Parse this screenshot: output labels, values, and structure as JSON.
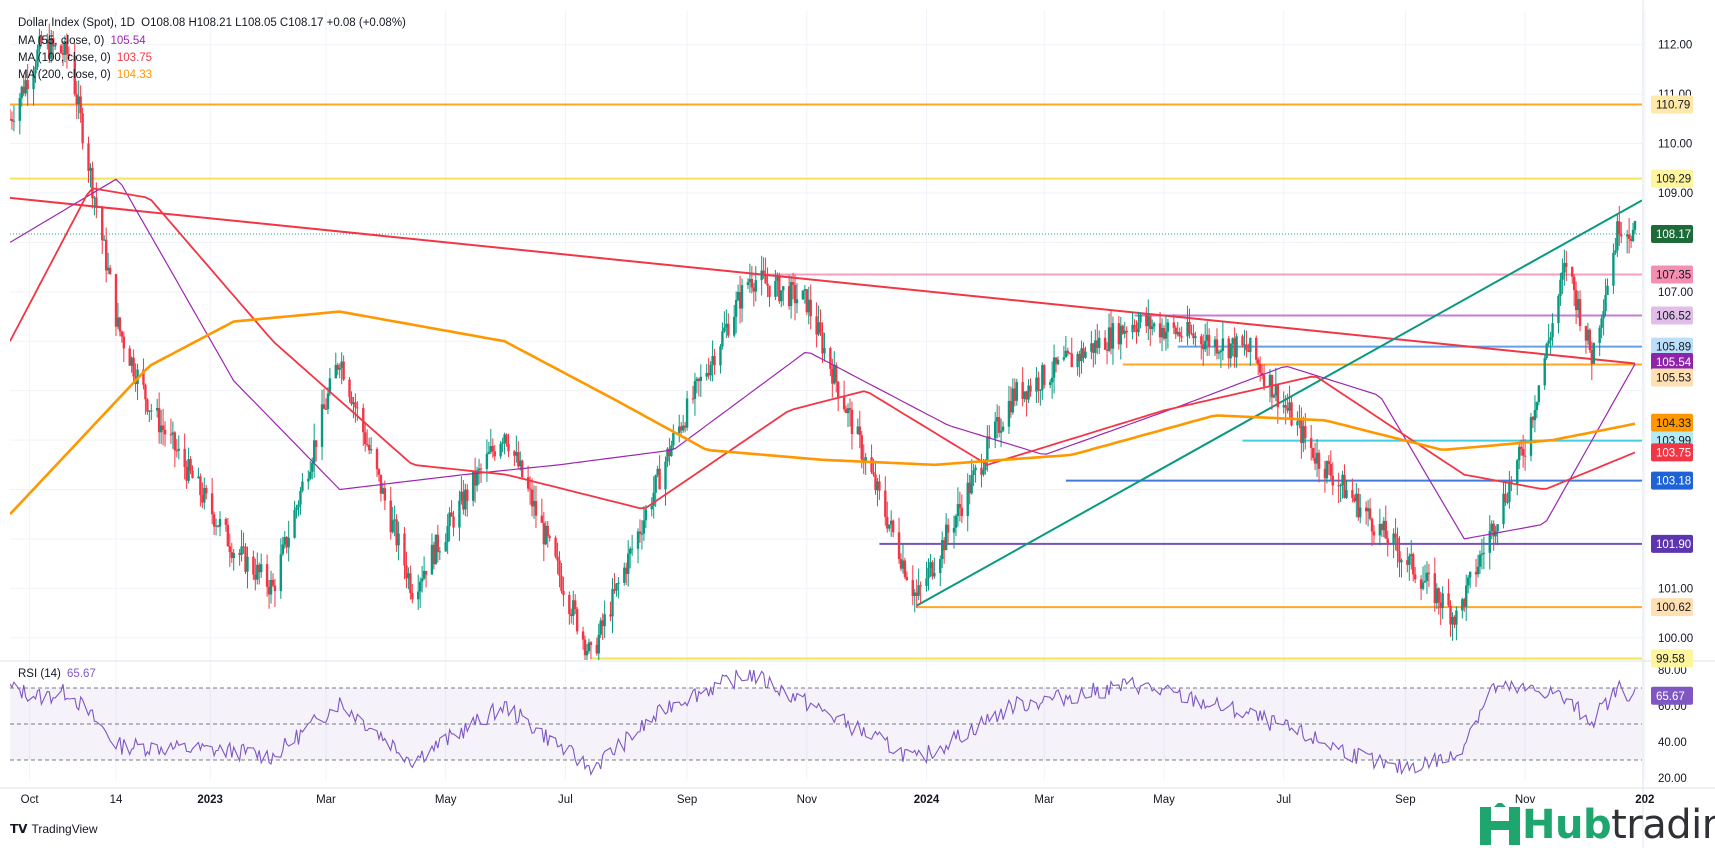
{
  "header": {
    "symbol_line": "Dollar Index (Spot), 1D",
    "ohlc": "O108.08 H108.21 L108.05 C108.17 +0.08 (+0.08%)",
    "ma55_label": "MA (55, close, 0)",
    "ma55_value": "105.54",
    "ma100_label": "MA (100, close, 0)",
    "ma100_value": "103.75",
    "ma200_label": "MA (200, close, 0)",
    "ma200_value": "104.33"
  },
  "rsi_legend": {
    "label": "RSI (14)",
    "value": "65.67"
  },
  "footer": {
    "tradingview": "TradingView",
    "brand_hub": "Hub",
    "brand_trading": "trading"
  },
  "colors": {
    "up": "#089981",
    "down": "#f23645",
    "ma55": "#9c27b0",
    "ma100": "#f23645",
    "ma200": "#ff9800",
    "rsi": "#7e57c2",
    "trend_down": "#f23645",
    "trend_up": "#089981",
    "grid": "#f0f3fa"
  },
  "chart_data": {
    "type": "line",
    "price_axis": {
      "ticks": [
        100.0,
        101.0,
        102.0,
        103.0,
        104.0,
        105.0,
        106.0,
        107.0,
        108.0,
        109.0,
        110.0,
        111.0,
        112.0
      ],
      "tick_labels": [
        "100.00",
        "101.00",
        "",
        "",
        "",
        "",
        "",
        "107.00",
        "",
        "109.00",
        "110.00",
        "111.00",
        "112.00"
      ],
      "ylim": [
        99.55,
        112.5
      ]
    },
    "time_axis": {
      "labels": [
        "Oct",
        "14",
        "2023",
        "Mar",
        "May",
        "Jul",
        "Sep",
        "Nov",
        "2024",
        "Mar",
        "May",
        "Jul",
        "Sep",
        "Nov",
        "202"
      ]
    },
    "rsi_axis": {
      "ticks": [
        20,
        40,
        60,
        80
      ],
      "tick_labels": [
        "20.00",
        "40.00",
        "60.00",
        "80.00"
      ],
      "overbought": 70,
      "oversold": 30,
      "mid": 50
    },
    "levels": [
      {
        "value": 110.79,
        "label": "110.79",
        "color": "#ff9800",
        "bg": "#ffe9a8"
      },
      {
        "value": 109.29,
        "label": "109.29",
        "color": "#f2e13a",
        "bg": "#fff59d"
      },
      {
        "value": 108.17,
        "label": "108.17",
        "color": "#089981",
        "bg": "#1e6b3a"
      },
      {
        "value": 107.35,
        "label": "107.35",
        "color": "#f48fb1",
        "bg": "#f48fb1"
      },
      {
        "value": 106.52,
        "label": "106.52",
        "color": "#ba68c8",
        "bg": "#e1bee7"
      },
      {
        "value": 105.89,
        "label": "105.89",
        "color": "#4a90e2",
        "bg": "#bbdefb"
      },
      {
        "value": 105.54,
        "label": "105.54",
        "color": "#9c27b0",
        "bg": "#8e24aa"
      },
      {
        "value": 105.53,
        "label": "105.53",
        "color": "#ff9800",
        "bg": "#ffe0b2"
      },
      {
        "value": 104.33,
        "label": "104.33",
        "color": "#ff9800",
        "bg": "#ff9800"
      },
      {
        "value": 103.99,
        "label": "103.99",
        "color": "#26c6da",
        "bg": "#b2ebf2"
      },
      {
        "value": 103.75,
        "label": "103.75",
        "color": "#f23645",
        "bg": "#f23645"
      },
      {
        "value": 103.18,
        "label": "103.18",
        "color": "#1e63d6",
        "bg": "#1e63d6"
      },
      {
        "value": 101.9,
        "label": "101.90",
        "color": "#5e35b1",
        "bg": "#5e35b1"
      },
      {
        "value": 100.62,
        "label": "100.62",
        "color": "#ff9800",
        "bg": "#ffe0b2"
      },
      {
        "value": 99.58,
        "label": "99.58",
        "color": "#f2e13a",
        "bg": "#fff59d"
      }
    ],
    "series": [
      {
        "name": "Price (close)",
        "x": [
          "2022-09-21",
          "2022-10-07",
          "2022-10-21",
          "2022-11-15",
          "2022-12-01",
          "2023-01-13",
          "2023-02-02",
          "2023-03-08",
          "2023-04-14",
          "2023-05-31",
          "2023-07-14",
          "2023-08-25",
          "2023-10-03",
          "2023-11-01",
          "2023-12-27",
          "2024-02-14",
          "2024-04-16",
          "2024-06-14",
          "2024-07-17",
          "2024-09-27",
          "2024-11-01",
          "2024-11-22",
          "2024-12-05",
          "2024-12-19",
          "2024-12-27"
        ],
        "values": [
          110.5,
          112.0,
          111.8,
          106.3,
          104.7,
          101.8,
          101.0,
          105.7,
          101.0,
          104.2,
          99.6,
          104.0,
          107.3,
          106.8,
          100.8,
          104.9,
          106.4,
          105.8,
          103.7,
          100.4,
          103.9,
          107.6,
          105.7,
          108.4,
          108.17
        ]
      },
      {
        "name": "MA (55, close, 0)",
        "x": [
          "2022-09-21",
          "2022-11-15",
          "2023-01-13",
          "2023-03-08",
          "2023-05-10",
          "2023-06-28",
          "2023-08-25",
          "2023-11-01",
          "2024-01-12",
          "2024-03-01",
          "2024-05-10",
          "2024-07-02",
          "2024-08-19",
          "2024-10-01",
          "2024-11-11",
          "2024-12-27"
        ],
        "values": [
          108.0,
          109.3,
          105.2,
          103.0,
          103.3,
          103.5,
          103.8,
          105.8,
          104.3,
          103.7,
          104.7,
          105.5,
          104.9,
          102.0,
          102.3,
          105.54
        ]
      },
      {
        "name": "MA (100, close, 0)",
        "x": [
          "2022-09-21",
          "2022-11-01",
          "2022-12-01",
          "2023-02-02",
          "2023-04-14",
          "2023-06-01",
          "2023-08-10",
          "2023-10-23",
          "2023-12-01",
          "2024-02-01",
          "2024-05-01",
          "2024-07-17",
          "2024-10-01",
          "2024-11-11",
          "2024-12-27"
        ],
        "values": [
          106.0,
          109.1,
          108.9,
          106.0,
          103.5,
          103.3,
          102.6,
          104.6,
          105.0,
          103.5,
          104.6,
          105.3,
          103.3,
          103.0,
          103.75
        ]
      },
      {
        "name": "MA (200, close, 0)",
        "x": [
          "2022-09-21",
          "2022-12-01",
          "2023-01-13",
          "2023-03-08",
          "2023-05-31",
          "2023-07-27",
          "2023-09-11",
          "2023-11-09",
          "2024-01-05",
          "2024-03-15",
          "2024-05-27",
          "2024-07-22",
          "2024-09-20",
          "2024-11-15",
          "2024-12-27"
        ],
        "values": [
          102.5,
          105.5,
          106.4,
          106.6,
          106.0,
          104.8,
          103.8,
          103.6,
          103.5,
          103.7,
          104.5,
          104.4,
          103.8,
          104.0,
          104.33
        ]
      },
      {
        "name": "RSI (14)",
        "x": [
          "2022-09-21",
          "2022-10-07",
          "2022-10-21",
          "2022-11-15",
          "2023-01-13",
          "2023-02-02",
          "2023-03-08",
          "2023-04-14",
          "2023-05-31",
          "2023-07-14",
          "2023-08-25",
          "2023-10-03",
          "2023-12-27",
          "2024-02-14",
          "2024-04-16",
          "2024-06-14",
          "2024-08-26",
          "2024-09-27",
          "2024-10-15",
          "2024-11-15",
          "2024-12-05",
          "2024-12-19",
          "2024-12-27"
        ],
        "values": [
          70,
          65,
          68,
          38,
          35,
          32,
          62,
          30,
          60,
          25,
          62,
          78,
          30,
          60,
          72,
          55,
          25,
          32,
          70,
          68,
          52,
          70,
          65.67
        ]
      }
    ],
    "trendlines": [
      {
        "name": "descending resistance",
        "from": [
          "2022-09-21",
          108.9
        ],
        "to": [
          "2024-12-27",
          105.55
        ]
      },
      {
        "name": "ascending support",
        "from": [
          "2023-12-27",
          100.65
        ],
        "to": [
          "2024-12-27",
          108.8
        ]
      }
    ]
  }
}
